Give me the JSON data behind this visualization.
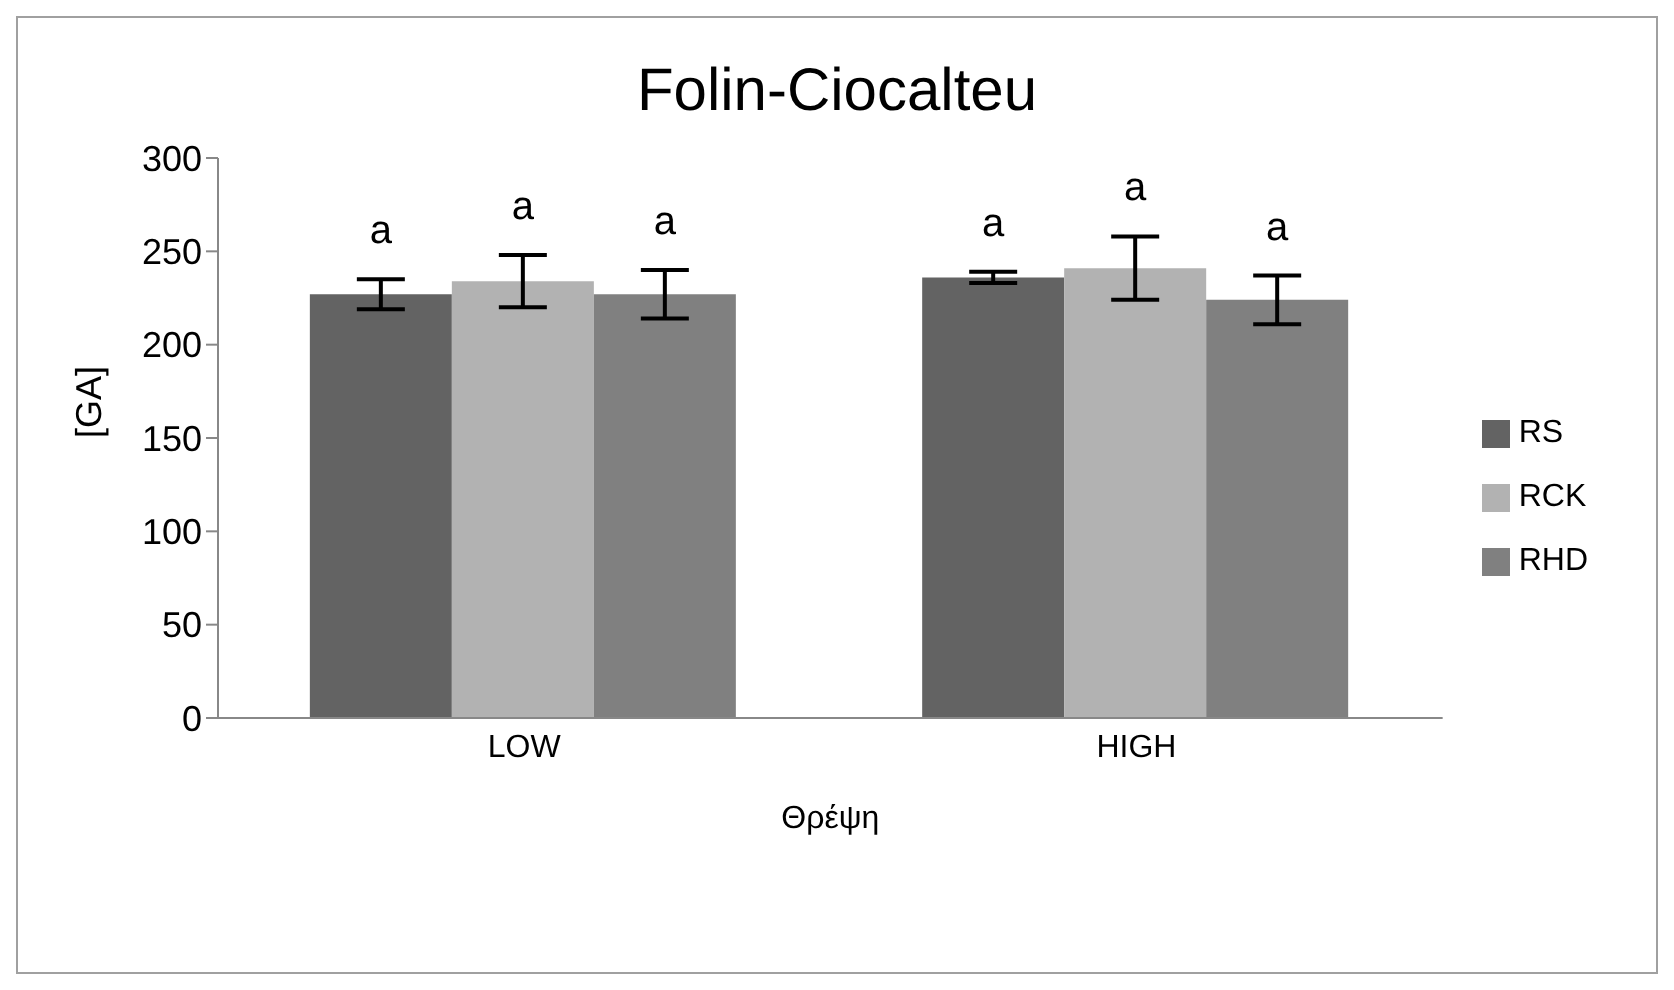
{
  "chart_data": {
    "type": "bar",
    "title": "Folin-Ciocalteu",
    "xlabel": "Θρέψη",
    "ylabel": "[GA]",
    "categories": [
      "LOW",
      "HIGH"
    ],
    "series": [
      {
        "name": "RS",
        "color": "#636363",
        "values": [
          227,
          236
        ],
        "errors": [
          8,
          3
        ],
        "value_labels": [
          "a",
          "a"
        ]
      },
      {
        "name": "RCK",
        "color": "#b2b2b2",
        "values": [
          234,
          241
        ],
        "errors": [
          14,
          17
        ],
        "value_labels": [
          "a",
          "a"
        ]
      },
      {
        "name": "RHD",
        "color": "#808080",
        "values": [
          227,
          224
        ],
        "errors": [
          13,
          13
        ],
        "value_labels": [
          "a",
          "a"
        ]
      }
    ],
    "ylim": [
      0,
      300
    ],
    "yticks": [
      0,
      50,
      100,
      150,
      200,
      250,
      300
    ],
    "grid": false,
    "legend": "right"
  }
}
